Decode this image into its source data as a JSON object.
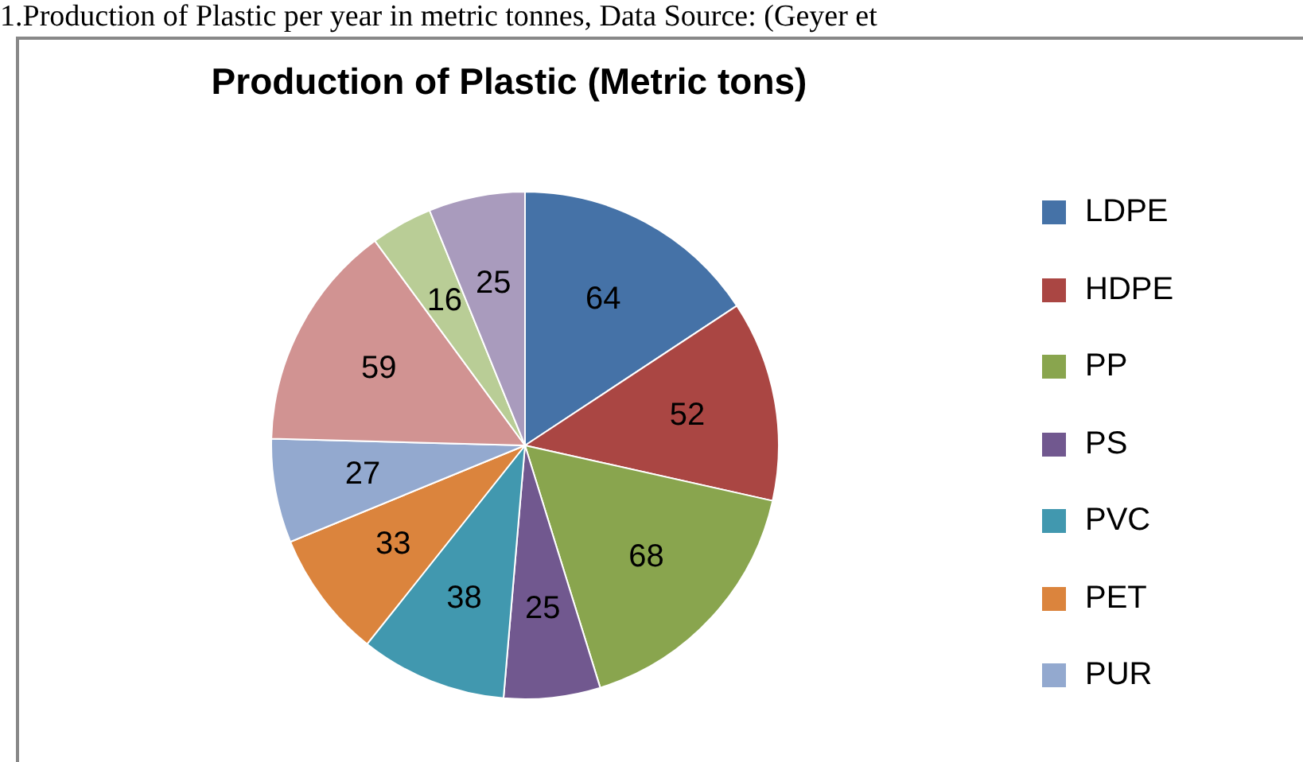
{
  "chart_data": {
    "type": "pie",
    "title": "Production of Plastic (Metric tons)",
    "annotations": [
      "1.Production of Plastic per year in metric tonnes, Data Source: (Geyer et"
    ],
    "categories": [
      "LDPE",
      "HDPE",
      "PP",
      "PS",
      "PVC",
      "PET",
      "PUR",
      null,
      null,
      null
    ],
    "values": [
      64,
      52,
      68,
      25,
      38,
      33,
      27,
      59,
      16,
      25
    ],
    "colors": [
      "#4572a7",
      "#aa4643",
      "#89a54e",
      "#71588f",
      "#4198af",
      "#db843d",
      "#93a9cf",
      "#d19392",
      "#b9cd96",
      "#a99bbd"
    ],
    "data_labels": true,
    "legend": "right"
  }
}
